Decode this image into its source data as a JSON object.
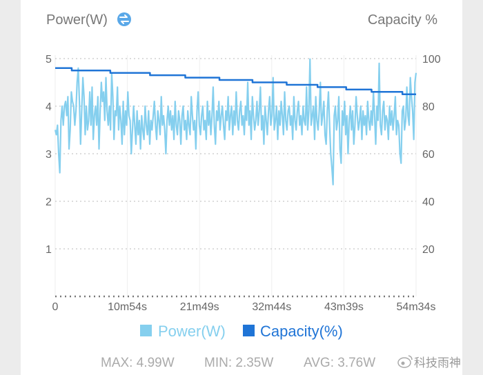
{
  "chart_data": {
    "type": "line",
    "left_axis_title": "Power(W)",
    "right_axis_title": "Capacity %",
    "x_tick_labels": [
      "0",
      "10m54s",
      "21m49s",
      "32m44s",
      "43m39s",
      "54m34s"
    ],
    "y_left_ticks": [
      "1",
      "2",
      "3",
      "4",
      "5"
    ],
    "y_right_ticks": [
      "20",
      "40",
      "60",
      "80",
      "100"
    ],
    "x_range_seconds": [
      0,
      3274
    ],
    "y_left_range": [
      0,
      5
    ],
    "y_right_range": [
      0,
      100
    ],
    "series": [
      {
        "name": "Power(W)",
        "axis": "left",
        "color": "#85cfee",
        "values_w": [
          3.5,
          3.4,
          3.6,
          3.0,
          2.6,
          3.7,
          4.0,
          3.6,
          4.0,
          4.1,
          3.8,
          4.2,
          3.1,
          3.5,
          4.3,
          4.1,
          4.0,
          3.6,
          3.9,
          4.5,
          4.8,
          4.1,
          3.2,
          3.9,
          4.6,
          4.2,
          3.4,
          4.0,
          3.5,
          3.7,
          4.3,
          3.6,
          4.4,
          3.3,
          3.8,
          4.0,
          3.6,
          4.2,
          3.1,
          3.9,
          4.5,
          4.1,
          4.3,
          3.7,
          4.6,
          3.9,
          3.6,
          4.0,
          3.5,
          4.7,
          4.2,
          3.3,
          3.9,
          3.8,
          4.4,
          3.5,
          4.0,
          3.7,
          3.2,
          4.1,
          3.4,
          3.9,
          3.6,
          4.3,
          3.8,
          3.7,
          3.0,
          3.5,
          4.0,
          3.6,
          3.2,
          3.9,
          3.4,
          3.7,
          3.1,
          3.8,
          3.5,
          3.3,
          4.0,
          3.6,
          3.4,
          3.9,
          3.2,
          3.7,
          3.5,
          3.8,
          4.1,
          3.6,
          3.3,
          3.9,
          3.7,
          3.4,
          4.2,
          3.6,
          3.8,
          3.5,
          3.0,
          3.7,
          4.0,
          3.6,
          3.9,
          3.5,
          3.8,
          3.3,
          4.1,
          3.6,
          3.4,
          3.9,
          3.7,
          3.2,
          3.8,
          4.0,
          3.5,
          3.7,
          3.3,
          3.9,
          3.6,
          3.4,
          4.2,
          3.8,
          3.5,
          3.7,
          3.1,
          3.9,
          4.3,
          3.6,
          3.4,
          3.8,
          4.0,
          3.5,
          3.7,
          3.3,
          4.1,
          3.6,
          3.9,
          3.4,
          3.8,
          4.4,
          3.6,
          3.2,
          3.9,
          3.7,
          4.1,
          3.5,
          3.8,
          4.0,
          3.6,
          3.3,
          3.9,
          3.7,
          4.2,
          3.5,
          3.8,
          4.0,
          3.4,
          3.9,
          3.6,
          4.3,
          3.7,
          3.5,
          3.9,
          4.1,
          3.6,
          3.8,
          3.4,
          4.0,
          3.7,
          4.5,
          3.6,
          3.9,
          3.3,
          4.2,
          3.8,
          3.5,
          3.7,
          4.1,
          3.6,
          3.9,
          4.4,
          3.5,
          3.8,
          3.2,
          4.0,
          3.7,
          3.4,
          3.9,
          4.2,
          3.6,
          3.8,
          4.6,
          3.5,
          3.7,
          4.0,
          3.3,
          3.9,
          3.6,
          4.1,
          3.8,
          3.4,
          4.3,
          3.7,
          3.5,
          3.9,
          4.0,
          3.6,
          3.8,
          3.3,
          4.2,
          3.7,
          3.5,
          3.9,
          4.1,
          3.6,
          3.8,
          3.4,
          4.0,
          3.7,
          3.6,
          4.4,
          3.5,
          3.9,
          4.99,
          3.6,
          3.8,
          4.0,
          3.3,
          4.2,
          3.7,
          3.5,
          3.9,
          4.5,
          3.6,
          3.8,
          4.1,
          3.4,
          3.2,
          3.9,
          4.3,
          3.6,
          3.0,
          2.7,
          2.35,
          3.8,
          4.0,
          3.5,
          3.7,
          4.2,
          3.1,
          2.8,
          3.9,
          3.6,
          4.1,
          3.4,
          3.8,
          3.0,
          3.7,
          4.0,
          3.5,
          3.9,
          3.2,
          3.6,
          4.2,
          3.8,
          3.5,
          3.7,
          4.0,
          3.3,
          3.9,
          3.6,
          3.8,
          3.4,
          4.1,
          3.7,
          3.5,
          3.9,
          3.6,
          4.3,
          3.8,
          3.2,
          4.0,
          3.7,
          4.9,
          3.6,
          3.4,
          3.9,
          4.1,
          3.5,
          3.8,
          3.7,
          3.3,
          4.0,
          3.6,
          3.9,
          3.5,
          3.8,
          4.2,
          3.4,
          3.7,
          3.6,
          3.0,
          2.8,
          3.9,
          4.0,
          3.5,
          3.7,
          4.4,
          3.8,
          3.6,
          4.6,
          4.2,
          3.9,
          3.3,
          4.5,
          4.7
        ]
      },
      {
        "name": "Capacity(%)",
        "axis": "right",
        "color": "#1f74d6",
        "steps": [
          {
            "t": 0,
            "pct": 96
          },
          {
            "t": 150,
            "pct": 95
          },
          {
            "t": 500,
            "pct": 94
          },
          {
            "t": 860,
            "pct": 93
          },
          {
            "t": 1180,
            "pct": 92
          },
          {
            "t": 1490,
            "pct": 91
          },
          {
            "t": 1790,
            "pct": 90
          },
          {
            "t": 2100,
            "pct": 89
          },
          {
            "t": 2380,
            "pct": 88
          },
          {
            "t": 2640,
            "pct": 87
          },
          {
            "t": 2870,
            "pct": 86
          },
          {
            "t": 3150,
            "pct": 85
          },
          {
            "t": 3274,
            "pct": 85
          }
        ]
      }
    ],
    "legend": [
      {
        "label": "Power(W)",
        "color": "#85cfee"
      },
      {
        "label": "Capacity(%)",
        "color": "#1f74d6"
      }
    ],
    "legend_position": "bottom",
    "grid": true,
    "stats": {
      "max_label": "MAX: 4.99W",
      "min_label": "MIN: 2.35W",
      "avg_label": "AVG: 3.76W"
    }
  },
  "swap_icon": "swap-icon",
  "watermark": "科技雨神"
}
